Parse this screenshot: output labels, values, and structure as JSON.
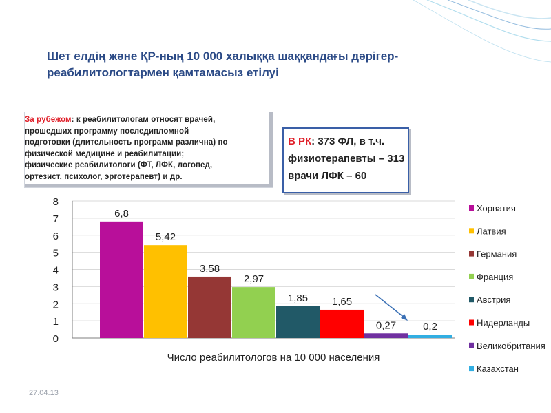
{
  "title": {
    "line1": "Шет елдің және ҚР-ның  10 000 халыққа шаққандағы дәрігер-",
    "line2": "реабилитологтармен қамтамасыз етілуі"
  },
  "abroad_note": {
    "label": "За рубежом",
    "text1": ": к реабилитологам относят врачей,",
    "line2": "прошедших программу последипломной",
    "line3": "подготовки  (длительность  программ различна) по",
    "line4": "физической медицине и реабилитации;",
    "line5": "физические реабилитологи (ФТ, ЛФК, логопед,",
    "line6": "ортезист,  психолог, эрготерапевт)  и др."
  },
  "rk_note": {
    "label": "В РК",
    "line1_rest": ": 373 ФЛ, в т.ч.",
    "line2": "физиотерапевты  – 313",
    "line3": "врачи ЛФК – 60"
  },
  "footer": {
    "date": "27.04.13"
  },
  "chart_data": {
    "type": "bar",
    "xlabel": "Число реабилитологов на 10 000 населения",
    "ylim": [
      0,
      8
    ],
    "yticks": [
      0,
      1,
      2,
      3,
      4,
      5,
      6,
      7,
      8
    ],
    "grid": true,
    "legend_position": "right",
    "categories": [
      "Хорватия",
      "Латвия",
      "Германия",
      "Франция",
      "Австрия",
      "Нидерланды",
      "Великобритания",
      "Казахстан"
    ],
    "values": [
      6.8,
      5.42,
      3.58,
      2.97,
      1.85,
      1.65,
      0.27,
      0.2
    ],
    "value_labels": [
      "6,8",
      "5,42",
      "3,58",
      "2,97",
      "1,85",
      "1,65",
      "0,27",
      "0,2"
    ],
    "colors": [
      "#b80f9a",
      "#ffc000",
      "#953735",
      "#92d050",
      "#215967",
      "#ff0000",
      "#7030a0",
      "#31aee2"
    ]
  }
}
